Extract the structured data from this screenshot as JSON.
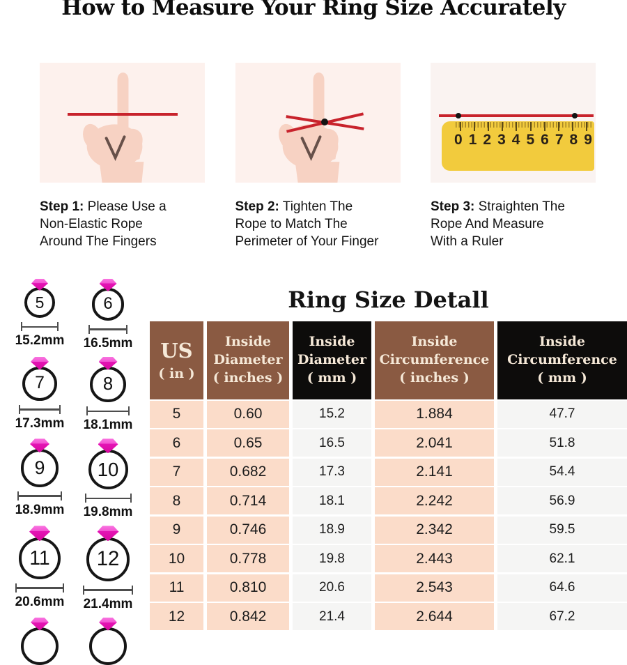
{
  "title": "How to Measure Your Ring Size Accurately",
  "steps": [
    {
      "label": "Step 1:",
      "text": "Please Use a\nNon-Elastic Rope\nAround The Fingers"
    },
    {
      "label": "Step 2:",
      "text": "Tighten The\nRope to Match The\nPerimeter of Your Finger"
    },
    {
      "label": "Step 3:",
      "text": "Straighten The\nRope And Measure\nWith a Ruler"
    }
  ],
  "ruler": {
    "numbers": [
      "0",
      "1",
      "2",
      "3",
      "4",
      "5",
      "6",
      "7",
      "8",
      "9"
    ]
  },
  "ring_guide": {
    "rings": [
      {
        "size": "5",
        "diameter": "15.2mm"
      },
      {
        "size": "6",
        "diameter": "16.5mm"
      },
      {
        "size": "7",
        "diameter": "17.3mm"
      },
      {
        "size": "8",
        "diameter": "18.1mm"
      },
      {
        "size": "9",
        "diameter": "18.9mm"
      },
      {
        "size": "10",
        "diameter": "19.8mm"
      },
      {
        "size": "11",
        "diameter": "20.6mm"
      },
      {
        "size": "12",
        "diameter": "21.4mm"
      }
    ]
  },
  "table": {
    "title": "Ring Size Detall",
    "headers": [
      {
        "lines": "US\n( in )"
      },
      {
        "lines": "Inside\nDiameter\n( inches )"
      },
      {
        "lines": "Inside\nDiameter\n( mm )"
      },
      {
        "lines": "Inside\nCircumference\n( inches )"
      },
      {
        "lines": "Inside\nCircumference\n( mm )"
      }
    ],
    "rows": [
      [
        "5",
        "0.60",
        "15.2",
        "1.884",
        "47.7"
      ],
      [
        "6",
        "0.65",
        "16.5",
        "2.041",
        "51.8"
      ],
      [
        "7",
        "0.682",
        "17.3",
        "2.141",
        "54.4"
      ],
      [
        "8",
        "0.714",
        "18.1",
        "2.242",
        "56.9"
      ],
      [
        "9",
        "0.746",
        "18.9",
        "2.342",
        "59.5"
      ],
      [
        "10",
        "0.778",
        "19.8",
        "2.443",
        "62.1"
      ],
      [
        "11",
        "0.810",
        "20.6",
        "2.543",
        "64.6"
      ],
      [
        "12",
        "0.842",
        "21.4",
        "2.644",
        "67.2"
      ]
    ]
  },
  "colors": {
    "header_brown": "#8a5a42",
    "header_black": "#0d0c0b",
    "row_peach": "#fbdcc9",
    "row_gray": "#f5f5f4",
    "rope_red": "#c8232c",
    "ruler_yellow": "#f2cb3d",
    "diamond_pink": "#e415b5",
    "step_image_bg": "#fdf1ed"
  }
}
